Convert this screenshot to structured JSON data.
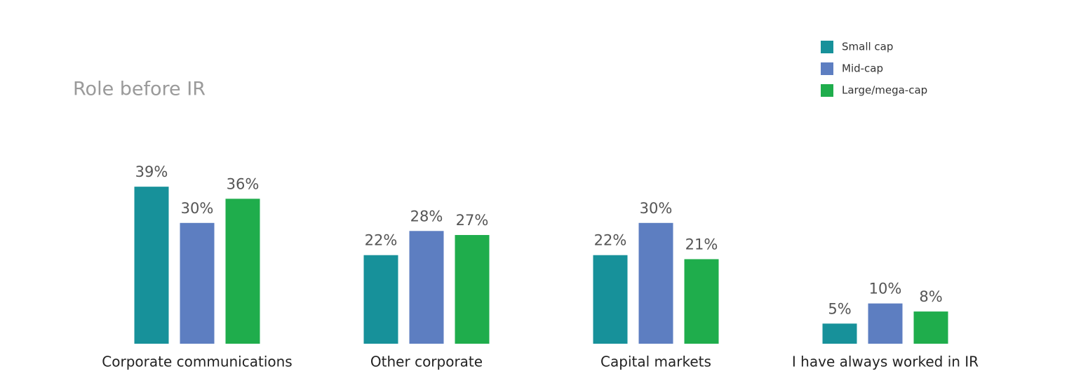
{
  "chart_data": {
    "type": "bar",
    "title": "Role before IR",
    "categories": [
      "Corporate communications",
      "Other corporate",
      "Capital markets",
      "I have always worked in IR"
    ],
    "series": [
      {
        "name": "Small cap",
        "color": "#17919a",
        "values": [
          39,
          22,
          22,
          5
        ],
        "value_labels": [
          "39%",
          "22%",
          "22%",
          "5%"
        ]
      },
      {
        "name": "Mid-cap",
        "color": "#5d7ec1",
        "values": [
          30,
          28,
          30,
          10
        ],
        "value_labels": [
          "30%",
          "28%",
          "30%",
          "10%"
        ]
      },
      {
        "name": "Large/mega-cap",
        "color": "#1fad4c",
        "values": [
          36,
          27,
          21,
          8
        ],
        "value_labels": [
          "36%",
          "27%",
          "21%",
          "8%"
        ]
      }
    ],
    "legend": "top-right"
  }
}
